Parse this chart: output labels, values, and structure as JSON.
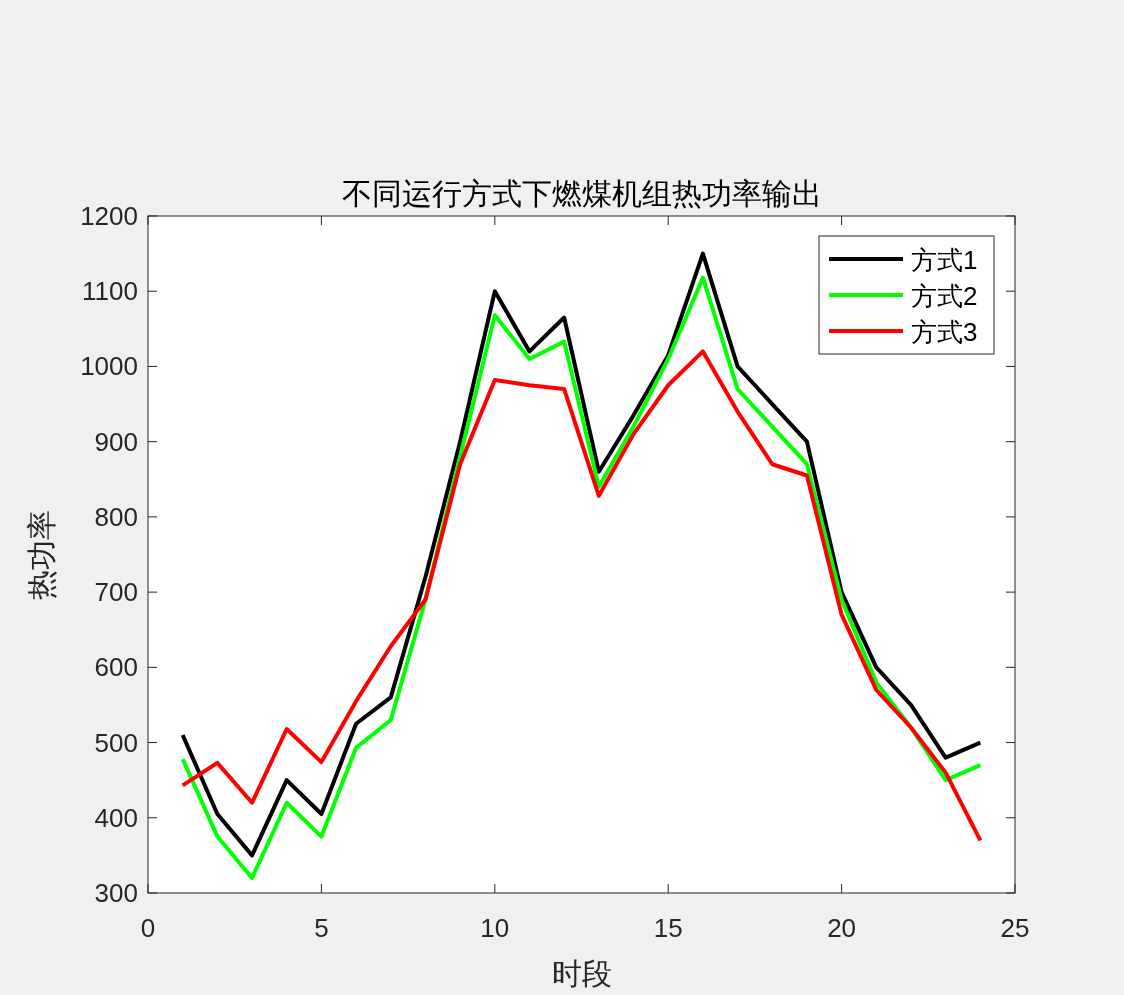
{
  "chart_data": {
    "type": "line",
    "title": "不同运行方式下燃煤机组热功率输出",
    "xlabel": "时段",
    "ylabel": "热功率",
    "x": [
      1,
      2,
      3,
      4,
      5,
      6,
      7,
      8,
      9,
      10,
      11,
      12,
      13,
      14,
      15,
      16,
      17,
      18,
      19,
      20,
      21,
      22,
      23,
      24
    ],
    "xlim": [
      0,
      25
    ],
    "xticks": [
      0,
      5,
      10,
      15,
      20,
      25
    ],
    "ylim": [
      300,
      1200
    ],
    "yticks": [
      300,
      400,
      500,
      600,
      700,
      800,
      900,
      1000,
      1100,
      1200
    ],
    "grid": false,
    "legend": "top right",
    "marker": "none",
    "line_style": "solid",
    "series": [
      {
        "name": "方式1",
        "color": "#000000",
        "values": [
          510,
          405,
          350,
          450,
          405,
          525,
          560,
          720,
          900,
          1100,
          1020,
          1065,
          860,
          935,
          1015,
          1150,
          1000,
          950,
          900,
          700,
          600,
          550,
          480,
          500
        ]
      },
      {
        "name": "方式2",
        "color": "#00ff00",
        "values": [
          478,
          375,
          320,
          420,
          375,
          493,
          530,
          690,
          880,
          1068,
          1010,
          1033,
          840,
          920,
          1010,
          1118,
          970,
          920,
          870,
          690,
          580,
          520,
          450,
          470
        ]
      },
      {
        "name": "方式3",
        "color": "#ff0000",
        "values": [
          443,
          473,
          420,
          518,
          474,
          555,
          628,
          690,
          870,
          982,
          975,
          970,
          828,
          910,
          975,
          1020,
          940,
          870,
          855,
          670,
          570,
          520,
          460,
          370
        ]
      }
    ]
  }
}
